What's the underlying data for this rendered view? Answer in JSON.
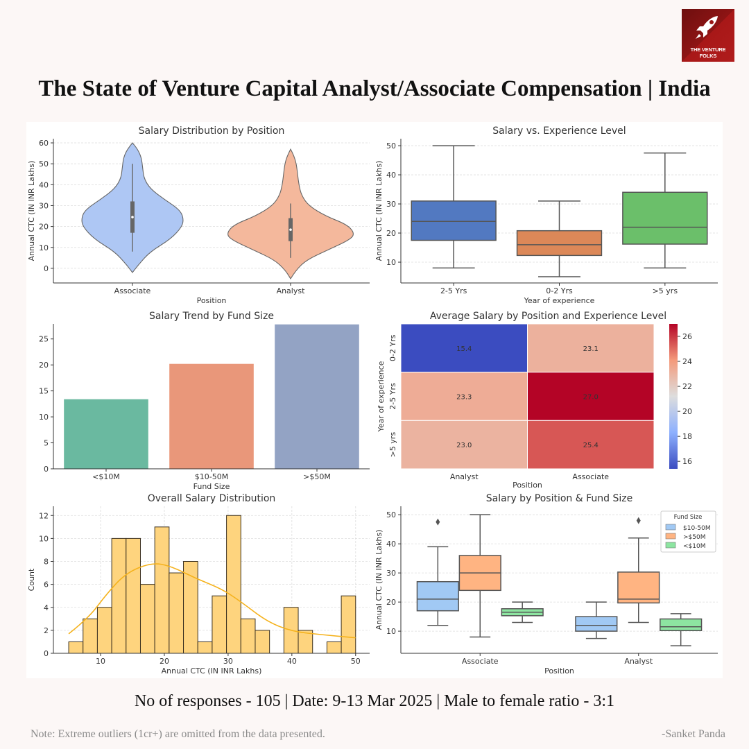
{
  "brand": {
    "logo_text": "THE VENTURE FOLKS",
    "logo_color": "#9b1515"
  },
  "title": "The State of Venture Capital Analyst/Associate Compensation | India",
  "footer": "No of responses - 105 | Date: 9-13 Mar 2025 | Male to female ratio - 3:1",
  "note": "Note: Extreme outliers (1cr+) are omitted from the data presented.",
  "signature": "-Sanket Panda",
  "chart_data": [
    {
      "type": "violin",
      "title": "Salary Distribution by Position",
      "xlabel": "Position",
      "ylabel": "Annual CTC (IN INR Lakhs)",
      "ylim": [
        -7,
        62
      ],
      "yticks": [
        0,
        10,
        20,
        30,
        40,
        50,
        60
      ],
      "categories": [
        "Associate",
        "Analyst"
      ],
      "colors": [
        "#aec7f4",
        "#f4b89c"
      ],
      "series": [
        {
          "name": "Associate",
          "min": 8,
          "q1": 17,
          "median": 24.5,
          "q3": 32,
          "max": 50,
          "density": [
            [
              -2,
              0
            ],
            [
              2,
              0.1
            ],
            [
              8,
              0.28
            ],
            [
              14,
              0.6
            ],
            [
              20,
              0.78
            ],
            [
              24,
              0.8
            ],
            [
              28,
              0.74
            ],
            [
              33,
              0.5
            ],
            [
              38,
              0.28
            ],
            [
              43,
              0.18
            ],
            [
              48,
              0.16
            ],
            [
              53,
              0.14
            ],
            [
              57,
              0.08
            ],
            [
              60,
              0
            ]
          ]
        },
        {
          "name": "Analyst",
          "min": 5,
          "q1": 13,
          "median": 18.5,
          "q3": 24,
          "max": 31,
          "density": [
            [
              -5,
              0
            ],
            [
              -1,
              0.08
            ],
            [
              4,
              0.25
            ],
            [
              9,
              0.6
            ],
            [
              14,
              0.95
            ],
            [
              17,
              1.0
            ],
            [
              21,
              0.88
            ],
            [
              25,
              0.55
            ],
            [
              30,
              0.28
            ],
            [
              35,
              0.17
            ],
            [
              40,
              0.13
            ],
            [
              45,
              0.11
            ],
            [
              50,
              0.09
            ],
            [
              54,
              0.05
            ],
            [
              57,
              0
            ]
          ]
        }
      ]
    },
    {
      "type": "box",
      "title": "Salary vs. Experience Level",
      "xlabel": "Year of experience",
      "ylabel": "Annual CTC (IN INR Lakhs)",
      "ylim": [
        2.86,
        52.4
      ],
      "yticks": [
        10,
        20,
        30,
        40,
        50
      ],
      "categories": [
        "2-5 Yrs",
        "0-2 Yrs",
        ">5 yrs"
      ],
      "colors": [
        "#5279c1",
        "#dc8858",
        "#6bbf6a"
      ],
      "series": [
        {
          "name": "2-5 Yrs",
          "min": 8,
          "q1": 17.5,
          "median": 24,
          "q3": 31,
          "max": 50
        },
        {
          "name": "0-2 Yrs",
          "min": 5,
          "q1": 12.3,
          "median": 16,
          "q3": 20.8,
          "max": 31
        },
        {
          "name": ">5 yrs",
          "min": 8,
          "q1": 16.2,
          "median": 22,
          "q3": 34,
          "max": 47.5
        }
      ]
    },
    {
      "type": "bar",
      "title": "Salary Trend by Fund Size",
      "xlabel": "Fund Size",
      "ylabel": "",
      "ylim": [
        0,
        27.9
      ],
      "yticks": [
        0,
        5,
        10,
        15,
        20,
        25
      ],
      "categories": [
        "<$10M",
        "$10-50M",
        ">$50M"
      ],
      "values": [
        13.4,
        20.2,
        27.8
      ],
      "colors": [
        "#6ab9a0",
        "#e9977a",
        "#93a3c4"
      ]
    },
    {
      "type": "heatmap",
      "title": "Average Salary by Position and Experience Level",
      "xlabel": "Position",
      "ylabel": "Year of experience",
      "rows": [
        "0-2 Yrs",
        "2-5 Yrs",
        ">5 yrs"
      ],
      "cols": [
        "Analyst",
        "Associate"
      ],
      "values": [
        [
          15.4,
          23.1
        ],
        [
          23.3,
          27.0
        ],
        [
          23.0,
          25.4
        ]
      ],
      "colorbar": {
        "range": [
          15.4,
          27.0
        ],
        "ticks": [
          16,
          18,
          20,
          22,
          24,
          26
        ],
        "colormap": [
          "#3b4cc0",
          "#8db0fe",
          "#dddddd",
          "#f49a7b",
          "#b40426"
        ]
      }
    },
    {
      "type": "histogram",
      "title": "Overall Salary Distribution",
      "xlabel": "Annual CTC (IN INR Lakhs)",
      "ylabel": "Count",
      "xlim": [
        2.6,
        52.2
      ],
      "ylim": [
        0,
        12.8
      ],
      "xticks": [
        10,
        20,
        30,
        40,
        50
      ],
      "yticks": [
        0,
        2,
        4,
        6,
        8,
        10,
        12
      ],
      "bin_start": 5,
      "bin_width": 2.25,
      "counts": [
        1,
        3,
        4,
        10,
        10,
        6,
        11,
        7,
        8,
        1,
        5,
        12,
        3,
        2,
        0,
        4,
        2,
        0,
        1,
        5
      ],
      "color": "#fed47e",
      "kde_color": "#f5b21c",
      "kde": [
        [
          5,
          1.7
        ],
        [
          8,
          3.0
        ],
        [
          11,
          5.2
        ],
        [
          14,
          7.0
        ],
        [
          18,
          7.9
        ],
        [
          21,
          7.6
        ],
        [
          25,
          6.5
        ],
        [
          29,
          5.6
        ],
        [
          32,
          4.5
        ],
        [
          36,
          2.8
        ],
        [
          40,
          1.9
        ],
        [
          45,
          1.6
        ],
        [
          50,
          1.35
        ]
      ]
    },
    {
      "type": "box",
      "title": "Salary by Position & Fund Size",
      "xlabel": "Position",
      "ylabel": "Annual CTC (IN INR Lakhs)",
      "ylim": [
        2.4,
        52.9
      ],
      "yticks": [
        10,
        20,
        30,
        40,
        50
      ],
      "categories": [
        "Associate",
        "Analyst"
      ],
      "legend": {
        "title": "Fund Size",
        "position": "top-right",
        "entries": [
          "$10-50M",
          ">$50M",
          "<$10M"
        ]
      },
      "colors": [
        "#a1c9f4",
        "#ffb482",
        "#8de5a1"
      ],
      "series": [
        {
          "name": "$10-50M",
          "boxes": [
            {
              "min": 12,
              "q1": 17,
              "median": 21,
              "q3": 27,
              "max": 39,
              "outliers": [
                47.5
              ]
            },
            {
              "min": 7.5,
              "q1": 10,
              "median": 12,
              "q3": 15,
              "max": 20,
              "outliers": []
            }
          ]
        },
        {
          "name": ">$50M",
          "boxes": [
            {
              "min": 8,
              "q1": 24,
              "median": 30,
              "q3": 36,
              "max": 50,
              "outliers": []
            },
            {
              "min": 13,
              "q1": 19.7,
              "median": 21,
              "q3": 30.3,
              "max": 42,
              "outliers": [
                48
              ]
            }
          ]
        },
        {
          "name": "<$10M",
          "boxes": [
            {
              "min": 13,
              "q1": 15.3,
              "median": 16.5,
              "q3": 17.7,
              "max": 20,
              "outliers": []
            },
            {
              "min": 5,
              "q1": 10.2,
              "median": 11.5,
              "q3": 14.2,
              "max": 16,
              "outliers": []
            }
          ]
        }
      ]
    }
  ]
}
